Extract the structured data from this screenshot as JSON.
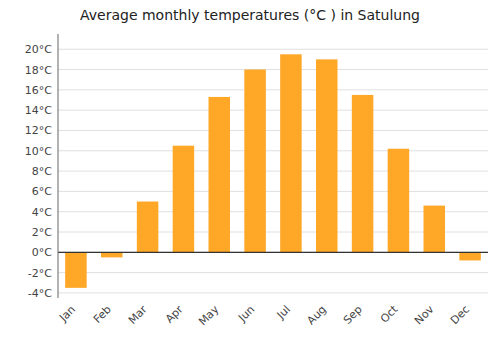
{
  "chart_data": {
    "type": "bar",
    "title": "Average monthly temperatures (°C ) in Satulung",
    "categories": [
      "Jan",
      "Feb",
      "Mar",
      "Apr",
      "May",
      "Jun",
      "Jul",
      "Aug",
      "Sep",
      "Oct",
      "Nov",
      "Dec"
    ],
    "values": [
      -3.5,
      -0.5,
      5.0,
      10.5,
      15.3,
      18.0,
      19.5,
      19.0,
      15.5,
      10.2,
      4.6,
      -0.8
    ],
    "color": "#FFA726",
    "ylim": [
      -4.5,
      21.5
    ],
    "yticks": [
      {
        "value": -4,
        "label": "-4°C"
      },
      {
        "value": -2,
        "label": "-2°C"
      },
      {
        "value": 0,
        "label": "0°C"
      },
      {
        "value": 2,
        "label": "2°C"
      },
      {
        "value": 4,
        "label": "4°C"
      },
      {
        "value": 6,
        "label": "6°C"
      },
      {
        "value": 8,
        "label": "8°C"
      },
      {
        "value": 10,
        "label": "10°C"
      },
      {
        "value": 12,
        "label": "12°C"
      },
      {
        "value": 14,
        "label": "14°C"
      },
      {
        "value": 16,
        "label": "16°C"
      },
      {
        "value": 18,
        "label": "18°C"
      },
      {
        "value": 20,
        "label": "20°C"
      }
    ],
    "grid": true
  }
}
